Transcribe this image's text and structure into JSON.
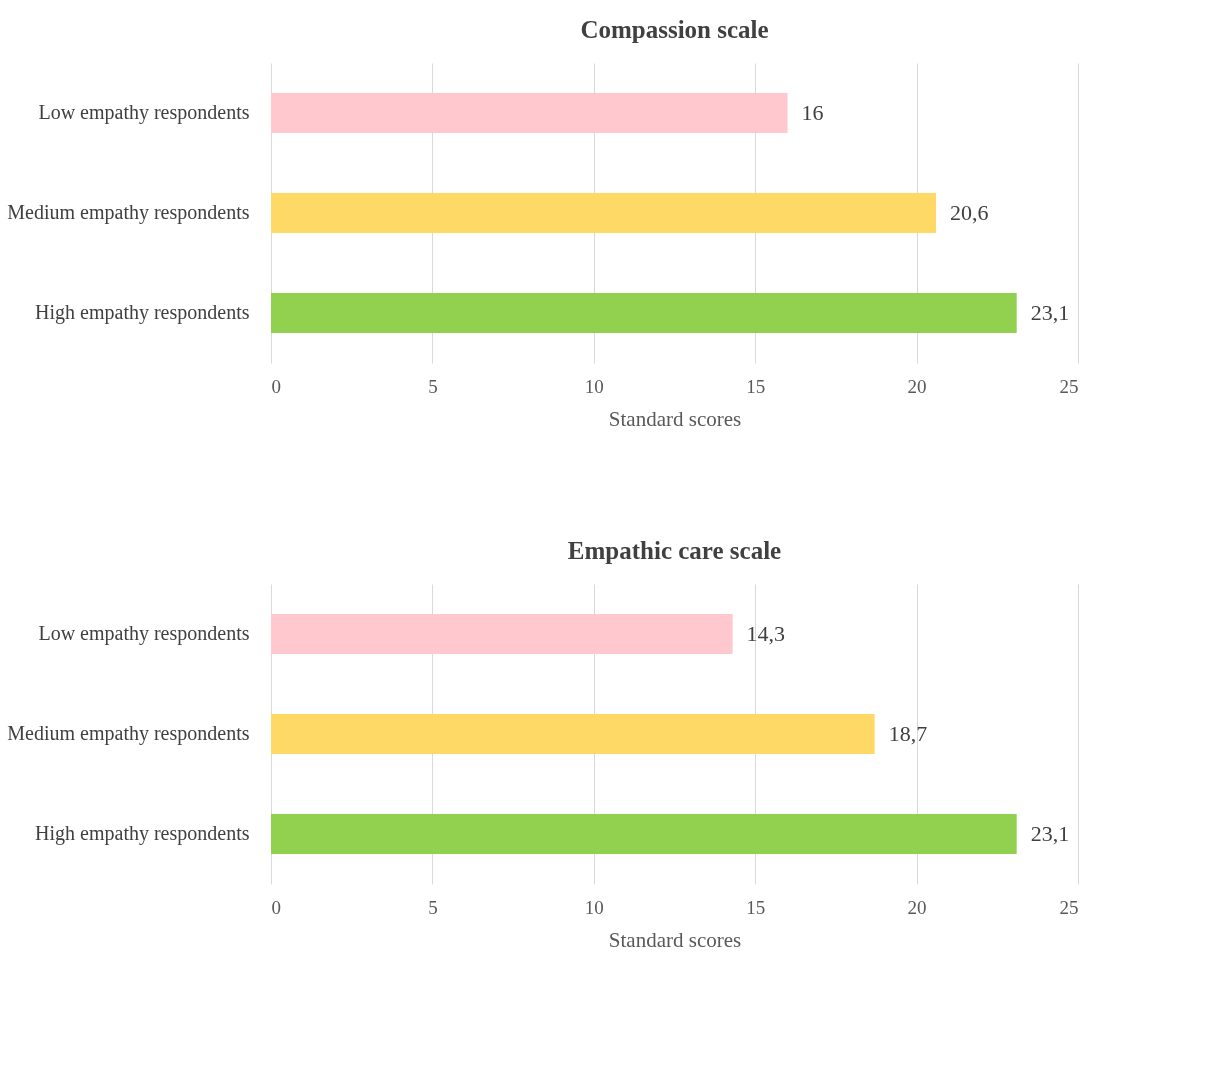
{
  "chart_data": [
    {
      "type": "bar",
      "orientation": "horizontal",
      "title": "Compassion scale",
      "xlabel": "Standard scores",
      "categories": [
        "Low empathy respondents",
        "Medium empathy respondents",
        "High empathy respondents"
      ],
      "values": [
        16,
        20.6,
        23.1
      ],
      "value_labels": [
        "16",
        "20,6",
        "23,1"
      ],
      "colors": [
        "#ffc7ce",
        "#ffd966",
        "#92d050"
      ],
      "xlim": [
        0,
        25
      ],
      "xticks": [
        0,
        5,
        10,
        15,
        20,
        25
      ],
      "grid": "x"
    },
    {
      "type": "bar",
      "orientation": "horizontal",
      "title": "Empathic care scale",
      "xlabel": "Standard scores",
      "categories": [
        "Low empathy respondents",
        "Medium empathy respondents",
        "High empathy respondents"
      ],
      "values": [
        14.3,
        18.7,
        23.1
      ],
      "value_labels": [
        "14,3",
        "18,7",
        "23,1"
      ],
      "colors": [
        "#ffc7ce",
        "#ffd966",
        "#92d050"
      ],
      "xlim": [
        0,
        25
      ],
      "xticks": [
        0,
        5,
        10,
        15,
        20,
        25
      ],
      "grid": "x"
    }
  ]
}
